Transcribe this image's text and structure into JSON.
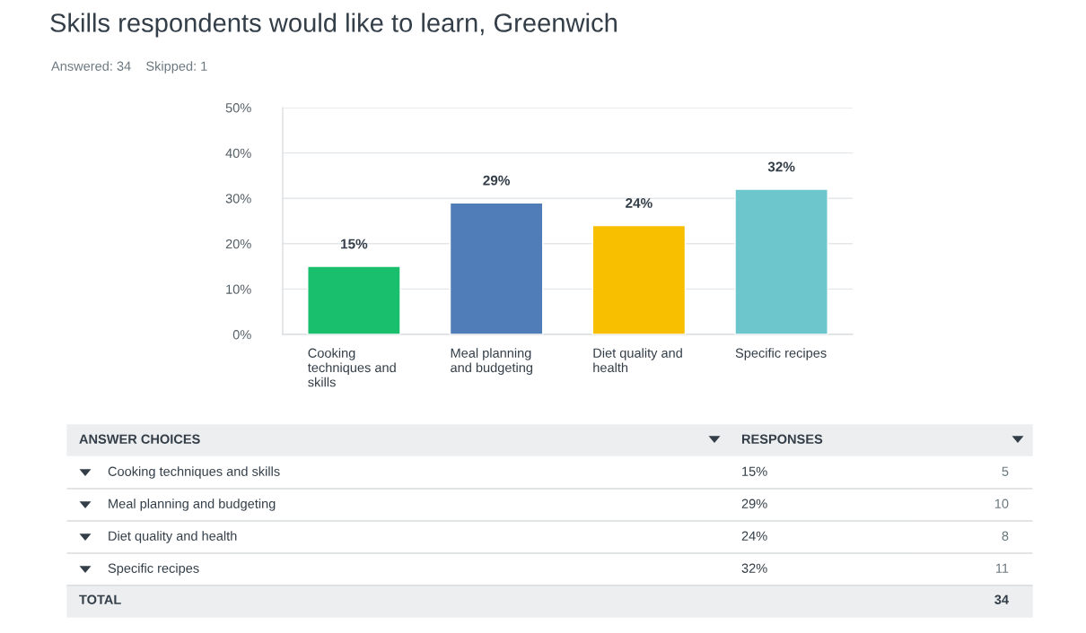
{
  "chart_data": {
    "type": "bar",
    "title": "Skills respondents would like to learn, Greenwich",
    "subtitle": "Answered: 34    Skipped: 1",
    "categories": [
      "Cooking techniques and skills",
      "Meal planning and budgeting",
      "Diet quality and health",
      "Specific recipes"
    ],
    "values": [
      15,
      29,
      24,
      32
    ],
    "colors": [
      "#1abf6e",
      "#507db7",
      "#f8be00",
      "#6cc6cc"
    ],
    "value_labels": [
      "15%",
      "29%",
      "24%",
      "32%"
    ],
    "ylim": [
      0,
      50
    ],
    "yticks": [
      {
        "value": 0,
        "label": "0%"
      },
      {
        "value": 10,
        "label": "10%"
      },
      {
        "value": 20,
        "label": "20%"
      },
      {
        "value": 30,
        "label": "30%"
      },
      {
        "value": 40,
        "label": "40%"
      },
      {
        "value": 50,
        "label": "50%"
      }
    ],
    "grid": "y",
    "annotations": [
      "ANSWER CHOICES",
      "RESPONSES",
      "Cooking techniques and skills",
      "15%",
      "5",
      "Meal planning and budgeting",
      "29%",
      "10",
      "Diet quality and health",
      "24%",
      "8",
      "Specific recipes",
      "32%",
      "11",
      "TOTAL",
      "34"
    ]
  }
}
